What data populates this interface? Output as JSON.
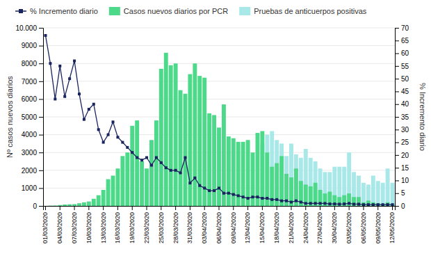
{
  "chart_data": {
    "type": "bar",
    "ylabel": "Nº casos nuevos diarios",
    "y2label": "% Incremento diario",
    "categories": [
      "01/03/2020",
      null,
      null,
      "04/03/2020",
      null,
      null,
      "07/03/2020",
      null,
      null,
      "10/03/2020",
      null,
      null,
      "13/03/2020",
      null,
      null,
      "16/03/2020",
      null,
      null,
      "19/03/2020",
      null,
      null,
      "22/03/2020",
      null,
      null,
      "25/03/2020",
      null,
      null,
      "28/03/2020",
      null,
      null,
      "31/03/2020",
      null,
      null,
      "03/04/2020",
      null,
      null,
      "06/04/2020",
      null,
      null,
      "09/04/2020",
      null,
      null,
      "12/04/2020",
      null,
      null,
      "15/04/2020",
      null,
      null,
      "18/04/2020",
      null,
      null,
      "21/04/2020",
      null,
      null,
      "24/04/2020",
      null,
      null,
      "27/04/2020",
      null,
      null,
      "30/04/2020",
      null,
      null,
      "03/05/2020",
      null,
      null,
      "06/05/2020",
      null,
      null,
      "09/05/2020",
      null,
      null,
      "12/05/2020"
    ],
    "series": [
      {
        "name": "% Incremento diario",
        "type": "line",
        "axis": "y2",
        "color": "#1a2560",
        "marker": "square",
        "values": [
          67,
          56,
          42,
          55,
          43,
          50,
          57,
          44,
          34,
          38,
          40,
          30,
          25,
          28,
          33,
          27,
          25,
          23,
          21,
          19,
          18,
          19,
          16,
          19,
          17,
          15,
          14,
          14,
          13,
          19,
          9,
          11,
          8,
          7,
          6,
          6,
          7,
          5,
          5,
          4.5,
          4,
          3.5,
          3,
          3.5,
          3.5,
          3,
          3,
          2.5,
          2.5,
          2,
          2,
          1.5,
          2,
          1.5,
          1,
          1,
          1,
          1,
          1,
          0.8,
          0.8,
          0.7,
          0.8,
          1,
          0.7,
          0.7,
          0.5,
          0.5,
          0.5,
          0.5,
          0.5,
          0.5,
          0.5
        ]
      },
      {
        "name": "Casos nuevos diarios por PCR",
        "type": "bar",
        "color": "#4CD98A",
        "values": [
          0,
          15,
          20,
          50,
          80,
          90,
          100,
          150,
          200,
          250,
          400,
          600,
          900,
          1500,
          1700,
          2100,
          2800,
          3000,
          4500,
          4800,
          2500,
          2100,
          3700,
          4800,
          7700,
          8600,
          7900,
          8000,
          6500,
          6300,
          7400,
          8000,
          7300,
          7200,
          5200,
          5100,
          4400,
          5700,
          3900,
          3800,
          3600,
          3600,
          3700,
          3000,
          4100,
          4200,
          3000,
          2200,
          2400,
          2800,
          1800,
          1600,
          2100,
          1400,
          1200,
          1100,
          1300,
          900,
          700,
          800,
          600,
          500,
          600,
          700,
          500,
          500,
          200,
          300,
          200,
          150,
          100,
          200,
          100
        ]
      },
      {
        "name": "Pruebas de anticuerpos positivas",
        "type": "bar",
        "color": "#A8E8E8",
        "values": [
          0,
          0,
          0,
          0,
          0,
          0,
          0,
          0,
          0,
          0,
          0,
          0,
          0,
          0,
          0,
          0,
          0,
          0,
          0,
          0,
          0,
          0,
          0,
          0,
          0,
          0,
          0,
          0,
          0,
          0,
          0,
          0,
          0,
          0,
          0,
          0,
          0,
          0,
          0,
          0,
          0,
          0,
          0,
          0,
          0,
          3500,
          4000,
          4200,
          3700,
          3500,
          2800,
          3500,
          2900,
          2700,
          3200,
          2700,
          2500,
          2100,
          1900,
          1900,
          2200,
          2200,
          2200,
          3000,
          1900,
          1700,
          1300,
          1200,
          1700,
          1400,
          1300,
          2100,
          1300
        ]
      }
    ],
    "ylim": [
      0,
      10000
    ],
    "yticks": [
      0,
      1000,
      2000,
      3000,
      4000,
      5000,
      6000,
      7000,
      8000,
      9000,
      {
        "value": 10000,
        "label": "10.000"
      }
    ],
    "y2lim": [
      0,
      70
    ],
    "y2ticks": [
      0,
      5,
      10,
      15,
      20,
      25,
      30,
      35,
      40,
      45,
      50,
      55,
      60,
      65,
      70
    ],
    "stacked": false,
    "grid": true,
    "legend": "top-left"
  }
}
